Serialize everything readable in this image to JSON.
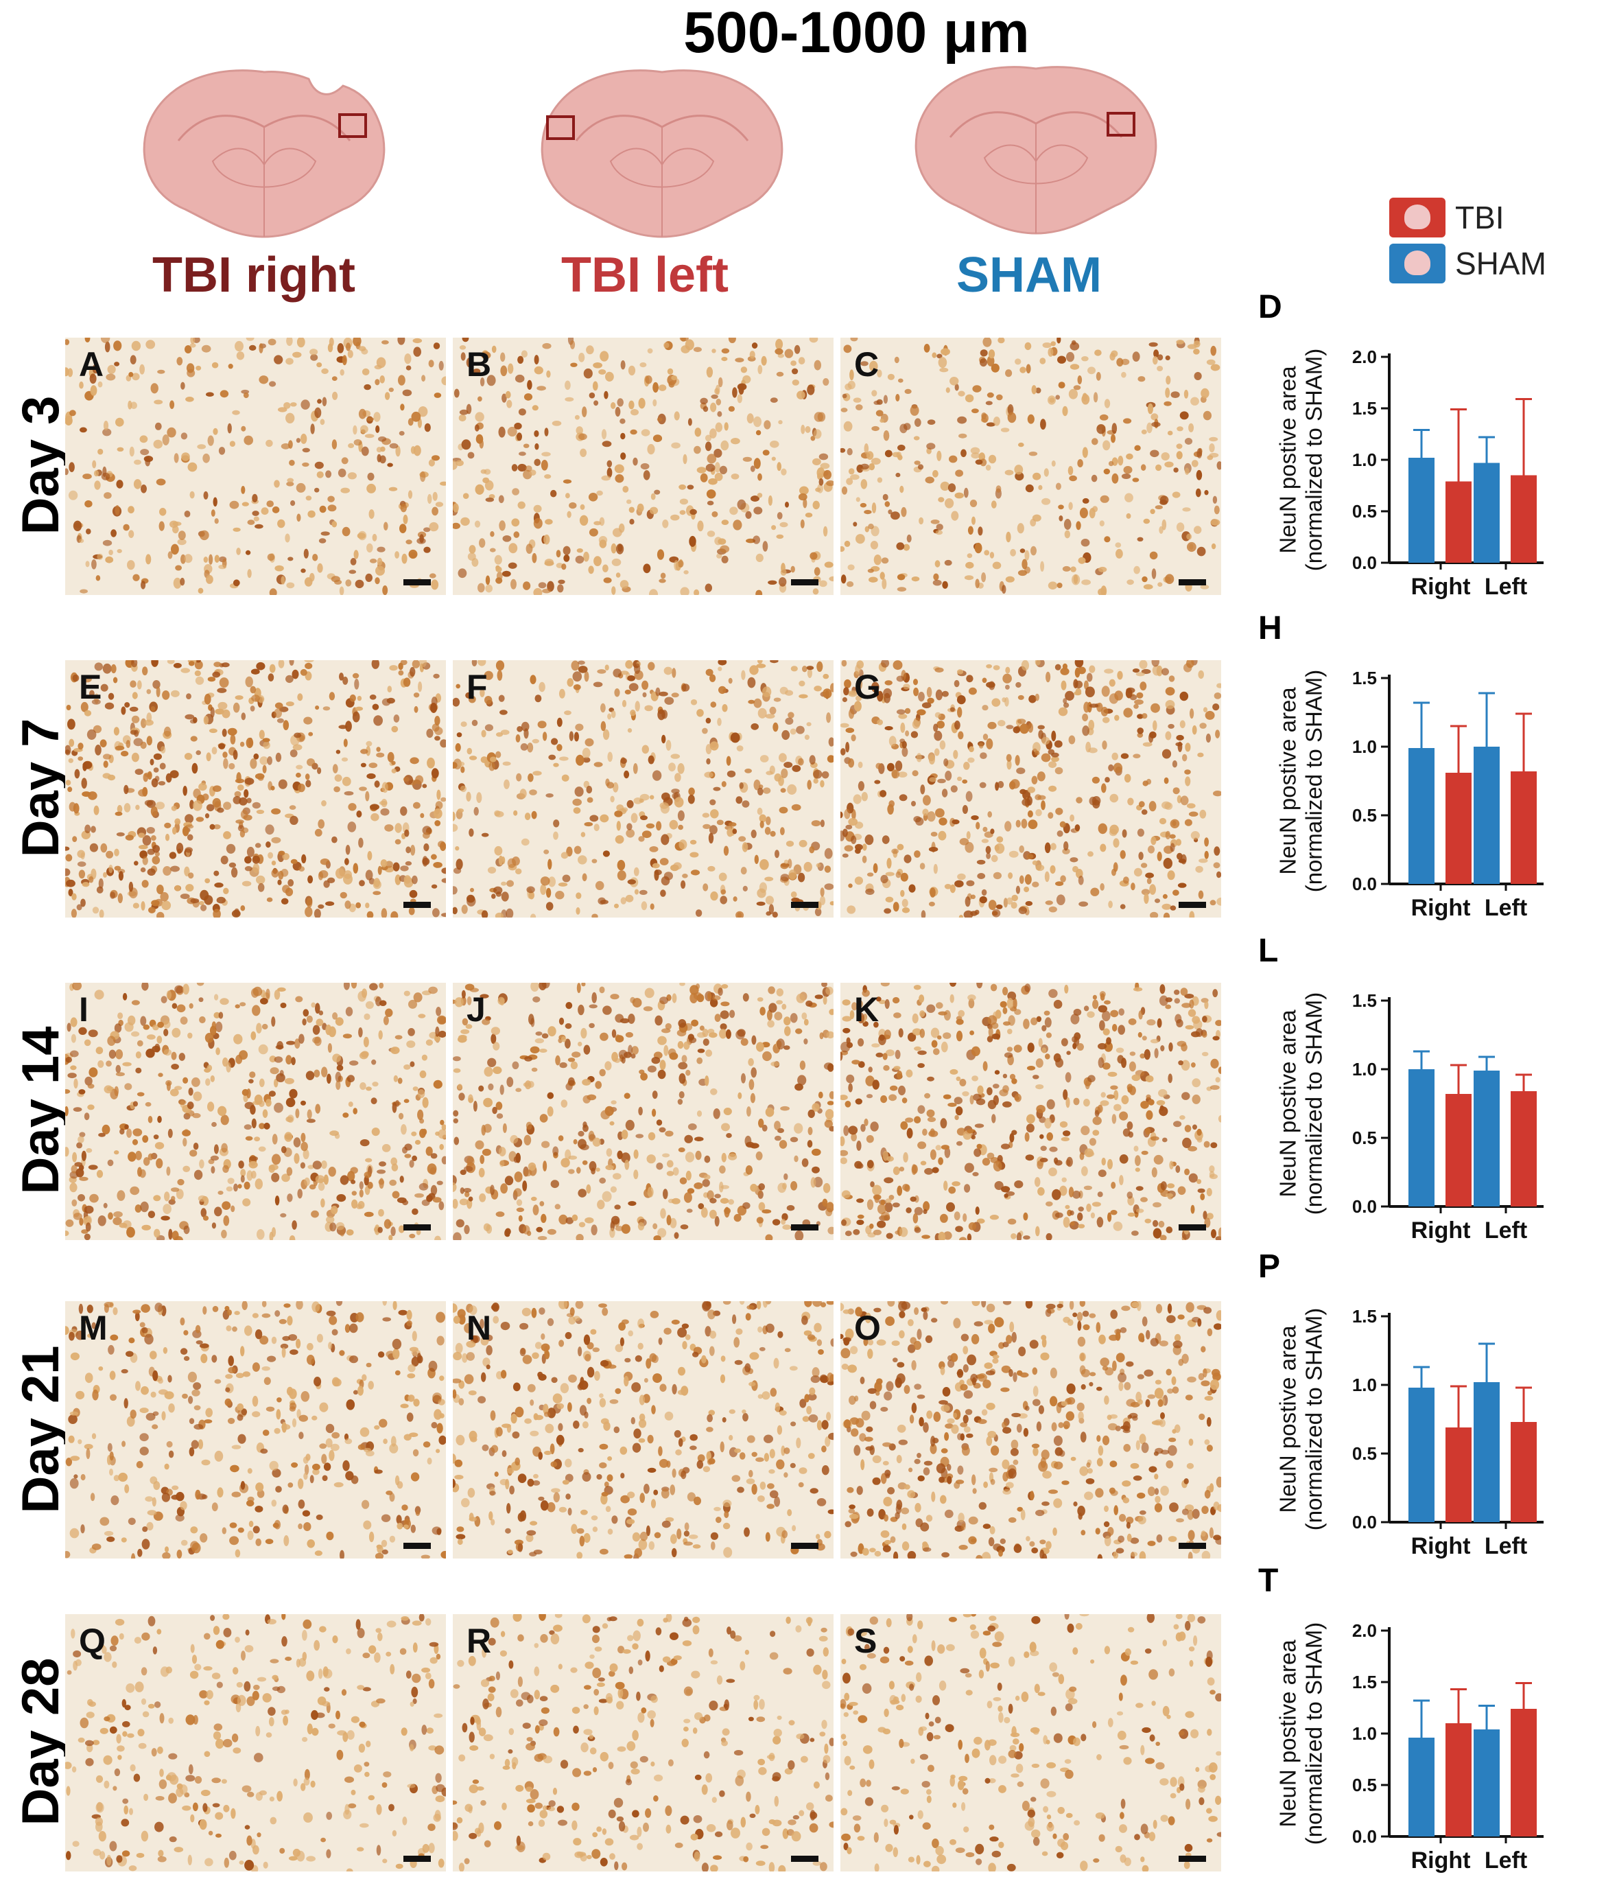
{
  "title": "500-1000 μm",
  "groups": [
    {
      "label": "TBI right",
      "color": "#7a1f1f"
    },
    {
      "label": "TBI left",
      "color": "#c0393b"
    },
    {
      "label": "SHAM",
      "color": "#1f7ab5"
    }
  ],
  "rows": [
    {
      "day": "Day 3",
      "panels": [
        "A",
        "B",
        "C"
      ]
    },
    {
      "day": "Day 7",
      "panels": [
        "E",
        "F",
        "G"
      ]
    },
    {
      "day": "Day 14",
      "panels": [
        "I",
        "J",
        "K"
      ]
    },
    {
      "day": "Day 21",
      "panels": [
        "M",
        "N",
        "O"
      ]
    },
    {
      "day": "Day 28",
      "panels": [
        "Q",
        "R",
        "S"
      ]
    }
  ],
  "legend": {
    "tbi": {
      "label": "TBI",
      "color": "#d0392f"
    },
    "sham": {
      "label": "SHAM",
      "color": "#2a7fbf"
    }
  },
  "chart_data": [
    {
      "type": "bar",
      "panel": "D",
      "categories": [
        "Right",
        "Left"
      ],
      "ylabel": "NeuN postive area (normalized to SHAM)",
      "ylim": [
        0,
        2.0
      ],
      "ticks": [
        "0.0",
        "0.5",
        "1.0",
        "1.5",
        "2.0"
      ],
      "series": [
        {
          "name": "SHAM",
          "values": [
            1.02,
            0.97
          ],
          "errors": [
            0.27,
            0.25
          ]
        },
        {
          "name": "TBI",
          "values": [
            0.79,
            0.85
          ],
          "errors": [
            0.7,
            0.74
          ]
        }
      ]
    },
    {
      "type": "bar",
      "panel": "H",
      "categories": [
        "Right",
        "Left"
      ],
      "ylabel": "NeuN postive area (normalized to SHAM)",
      "ylim": [
        0,
        1.5
      ],
      "ticks": [
        "0.0",
        "0.5",
        "1.0",
        "1.5"
      ],
      "series": [
        {
          "name": "SHAM",
          "values": [
            0.99,
            1.0
          ],
          "errors": [
            0.33,
            0.39
          ]
        },
        {
          "name": "TBI",
          "values": [
            0.81,
            0.82
          ],
          "errors": [
            0.34,
            0.42
          ]
        }
      ]
    },
    {
      "type": "bar",
      "panel": "L",
      "categories": [
        "Right",
        "Left"
      ],
      "ylabel": "NeuN postive area (normalized to SHAM)",
      "ylim": [
        0,
        1.5
      ],
      "ticks": [
        "0.0",
        "0.5",
        "1.0",
        "1.5"
      ],
      "series": [
        {
          "name": "SHAM",
          "values": [
            1.0,
            0.99
          ],
          "errors": [
            0.13,
            0.1
          ]
        },
        {
          "name": "TBI",
          "values": [
            0.82,
            0.84
          ],
          "errors": [
            0.21,
            0.12
          ]
        }
      ]
    },
    {
      "type": "bar",
      "panel": "P",
      "categories": [
        "Right",
        "Left"
      ],
      "ylabel": "NeuN postive area (normalized to SHAM)",
      "ylim": [
        0,
        1.5
      ],
      "ticks": [
        "0.0",
        "0.5",
        "1.0",
        "1.5"
      ],
      "series": [
        {
          "name": "SHAM",
          "values": [
            0.98,
            1.02
          ],
          "errors": [
            0.15,
            0.28
          ]
        },
        {
          "name": "TBI",
          "values": [
            0.69,
            0.73
          ],
          "errors": [
            0.3,
            0.25
          ]
        }
      ]
    },
    {
      "type": "bar",
      "panel": "T",
      "categories": [
        "Right",
        "Left"
      ],
      "ylabel": "NeuN postive area (normalized to SHAM)",
      "ylim": [
        0,
        2.0
      ],
      "ticks": [
        "0.0",
        "0.5",
        "1.0",
        "1.5",
        "2.0"
      ],
      "series": [
        {
          "name": "SHAM",
          "values": [
            0.96,
            1.04
          ],
          "errors": [
            0.36,
            0.23
          ]
        },
        {
          "name": "TBI",
          "values": [
            1.1,
            1.24
          ],
          "errors": [
            0.33,
            0.25
          ]
        }
      ]
    }
  ]
}
